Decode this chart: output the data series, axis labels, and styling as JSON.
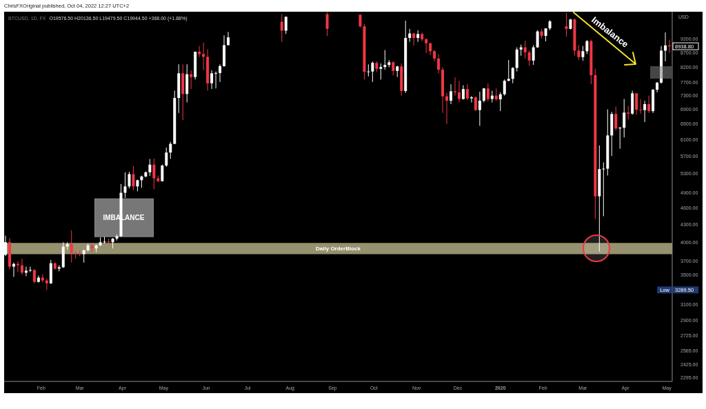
{
  "chart_data": {
    "type": "candlestick",
    "title": "BTCUSD, 1D, FX",
    "subtitle": "O19576.50 H20136.50 L19479.50 C19944.50 +368.00 (+1.88%)",
    "ylabel": "USD",
    "x": [
      "2019-01-06",
      "2019-01-09",
      "2019-01-12",
      "2019-01-15",
      "2019-01-18",
      "2019-01-21",
      "2019-01-24",
      "2019-01-27",
      "2019-01-30",
      "2019-02-02",
      "2019-02-05",
      "2019-02-08",
      "2019-02-11",
      "2019-02-14",
      "2019-02-17",
      "2019-02-20",
      "2019-02-23",
      "2019-02-26",
      "2019-03-01",
      "2019-03-04",
      "2019-03-07",
      "2019-03-10",
      "2019-03-13",
      "2019-03-16",
      "2019-03-19",
      "2019-03-22",
      "2019-03-25",
      "2019-03-28",
      "2019-03-31",
      "2019-04-03",
      "2019-04-06",
      "2019-04-09",
      "2019-04-12",
      "2019-04-15",
      "2019-04-18",
      "2019-04-21",
      "2019-04-24",
      "2019-04-27",
      "2019-04-30",
      "2019-05-03",
      "2019-05-06",
      "2019-05-09",
      "2019-05-12",
      "2019-05-15",
      "2019-05-18",
      "2019-05-21",
      "2019-05-24",
      "2019-05-27",
      "2019-05-30",
      "2019-06-02",
      "2019-06-05",
      "2019-06-08",
      "2019-06-11",
      "2019-06-14",
      "2019-06-17",
      "2019-07-26",
      "2019-07-29",
      "2019-08-28",
      "2019-09-21",
      "2019-09-24",
      "2019-09-27",
      "2019-09-30",
      "2019-10-03",
      "2019-10-06",
      "2019-10-09",
      "2019-10-12",
      "2019-10-15",
      "2019-10-18",
      "2019-10-21",
      "2019-10-24",
      "2019-10-27",
      "2019-10-30",
      "2019-11-02",
      "2019-11-05",
      "2019-11-08",
      "2019-11-11",
      "2019-11-14",
      "2019-11-17",
      "2019-11-20",
      "2019-11-23",
      "2019-11-26",
      "2019-11-29",
      "2019-12-02",
      "2019-12-05",
      "2019-12-08",
      "2019-12-11",
      "2019-12-14",
      "2019-12-17",
      "2019-12-20",
      "2019-12-23",
      "2019-12-26",
      "2019-12-29",
      "2020-01-01",
      "2020-01-04",
      "2020-01-07",
      "2020-01-10",
      "2020-01-13",
      "2020-01-16",
      "2020-01-19",
      "2020-01-22",
      "2020-01-25",
      "2020-01-28",
      "2020-01-31",
      "2020-02-03",
      "2020-02-06",
      "2020-02-18",
      "2020-02-21",
      "2020-02-24",
      "2020-02-27",
      "2020-03-01",
      "2020-03-04",
      "2020-03-07",
      "2020-03-10",
      "2020-03-13",
      "2020-03-16",
      "2020-03-19",
      "2020-03-22",
      "2020-03-25",
      "2020-03-28",
      "2020-03-31",
      "2020-04-03",
      "2020-04-06",
      "2020-04-09",
      "2020-04-12",
      "2020-04-15",
      "2020-04-18",
      "2020-04-21",
      "2020-04-24",
      "2020-04-27",
      "2020-04-30",
      "2020-05-03"
    ],
    "ohlc": [
      [
        3800,
        4110,
        3780,
        4000
      ],
      [
        4000,
        4070,
        3580,
        3620
      ],
      [
        3620,
        3680,
        3470,
        3660
      ],
      [
        3660,
        3700,
        3540,
        3640
      ],
      [
        3640,
        3740,
        3500,
        3530
      ],
      [
        3530,
        3620,
        3480,
        3560
      ],
      [
        3560,
        3620,
        3540,
        3570
      ],
      [
        3570,
        3580,
        3380,
        3400
      ],
      [
        3400,
        3490,
        3390,
        3460
      ],
      [
        3460,
        3510,
        3390,
        3420
      ],
      [
        3420,
        3450,
        3289.5,
        3380
      ],
      [
        3380,
        3720,
        3370,
        3670
      ],
      [
        3670,
        3680,
        3570,
        3590
      ],
      [
        3590,
        3640,
        3550,
        3610
      ],
      [
        3610,
        4000,
        3600,
        3930
      ],
      [
        3930,
        4000,
        3880,
        3970
      ],
      [
        3970,
        4200,
        3680,
        3830
      ],
      [
        3830,
        3860,
        3740,
        3820
      ],
      [
        3820,
        3870,
        3780,
        3810
      ],
      [
        3810,
        3880,
        3680,
        3870
      ],
      [
        3870,
        3980,
        3850,
        3950
      ],
      [
        3950,
        3960,
        3840,
        3900
      ],
      [
        3900,
        3960,
        3840,
        3950
      ],
      [
        3950,
        4080,
        3940,
        4000
      ],
      [
        4000,
        4090,
        3980,
        4010
      ],
      [
        4010,
        4060,
        3980,
        4000
      ],
      [
        4000,
        4070,
        3900,
        4060
      ],
      [
        4060,
        4130,
        4030,
        4100
      ],
      [
        4100,
        5080,
        4090,
        4900
      ],
      [
        4900,
        5330,
        4800,
        5030
      ],
      [
        5030,
        5340,
        4990,
        5290
      ],
      [
        5290,
        5470,
        4950,
        5030
      ],
      [
        5030,
        5170,
        4930,
        5160
      ],
      [
        5160,
        5260,
        5000,
        5240
      ],
      [
        5240,
        5350,
        5220,
        5330
      ],
      [
        5330,
        5630,
        5250,
        5500
      ],
      [
        5500,
        5640,
        4970,
        5200
      ],
      [
        5200,
        5260,
        5120,
        5140
      ],
      [
        5140,
        5500,
        5130,
        5480
      ],
      [
        5480,
        5900,
        5450,
        5780
      ],
      [
        5780,
        6040,
        5630,
        5990
      ],
      [
        5990,
        7450,
        5980,
        7230
      ],
      [
        7230,
        8300,
        6800,
        8000
      ],
      [
        8000,
        8300,
        6600,
        7350
      ],
      [
        7350,
        8300,
        7100,
        7970
      ],
      [
        7970,
        8100,
        7500,
        7880
      ],
      [
        7880,
        8750,
        7800,
        8740
      ],
      [
        8740,
        8950,
        8550,
        8660
      ],
      [
        8660,
        9080,
        8100,
        8560
      ],
      [
        8560,
        8830,
        7450,
        7680
      ],
      [
        7680,
        8100,
        7500,
        8000
      ],
      [
        8000,
        8060,
        7520,
        8010
      ],
      [
        8010,
        8300,
        7720,
        8240
      ],
      [
        8240,
        9350,
        8220,
        8980
      ],
      [
        8980,
        9480,
        8970,
        9270
      ],
      [
        9880,
        10200,
        9100,
        9530
      ],
      [
        9530,
        10100,
        9400,
        10090
      ],
      [
        10190,
        10280,
        9330,
        9600
      ],
      [
        10170,
        10200,
        9650,
        9700
      ],
      [
        9700,
        9800,
        7800,
        8050
      ],
      [
        8050,
        8300,
        7900,
        8060
      ],
      [
        8060,
        8400,
        7720,
        8350
      ],
      [
        8350,
        8400,
        8050,
        8150
      ],
      [
        8150,
        8330,
        7800,
        8210
      ],
      [
        8210,
        8800,
        8120,
        8280
      ],
      [
        8280,
        8450,
        8200,
        8370
      ],
      [
        8370,
        8400,
        7930,
        8080
      ],
      [
        8080,
        8250,
        7880,
        8230
      ],
      [
        8230,
        8330,
        7300,
        7440
      ],
      [
        7440,
        9930,
        7380,
        9250
      ],
      [
        9250,
        9600,
        9100,
        9420
      ],
      [
        9420,
        9450,
        8970,
        9250
      ],
      [
        9250,
        9550,
        9100,
        9400
      ],
      [
        9400,
        9450,
        9130,
        9200
      ],
      [
        9200,
        9240,
        8700,
        9050
      ],
      [
        9050,
        9080,
        8620,
        8760
      ],
      [
        8760,
        8800,
        8400,
        8500
      ],
      [
        8500,
        8650,
        8000,
        8120
      ],
      [
        8120,
        8200,
        6800,
        7280
      ],
      [
        7280,
        7380,
        6500,
        7150
      ],
      [
        7150,
        7650,
        7050,
        7430
      ],
      [
        7430,
        7870,
        7300,
        7400
      ],
      [
        7400,
        7750,
        7100,
        7200
      ],
      [
        7200,
        7620,
        7180,
        7500
      ],
      [
        7500,
        7650,
        7170,
        7220
      ],
      [
        7220,
        7290,
        7100,
        7250
      ],
      [
        7250,
        7280,
        6850,
        6880
      ],
      [
        6880,
        7420,
        6450,
        7150
      ],
      [
        7150,
        7530,
        7100,
        7520
      ],
      [
        7520,
        7680,
        7130,
        7200
      ],
      [
        7200,
        7450,
        7100,
        7300
      ],
      [
        7300,
        7520,
        7150,
        7190
      ],
      [
        7190,
        7400,
        6850,
        7340
      ],
      [
        7340,
        7800,
        7300,
        7760
      ],
      [
        7760,
        8450,
        7740,
        7820
      ],
      [
        7820,
        8200,
        7680,
        8180
      ],
      [
        8180,
        8900,
        8060,
        8820
      ],
      [
        8820,
        9000,
        8600,
        8900
      ],
      [
        8900,
        9150,
        8500,
        8720
      ],
      [
        8720,
        8790,
        8250,
        8430
      ],
      [
        8430,
        8980,
        8280,
        8900
      ],
      [
        8900,
        9550,
        8880,
        9500
      ],
      [
        9500,
        9600,
        9230,
        9330
      ],
      [
        9330,
        9620,
        9120,
        9620
      ],
      [
        9620,
        9950,
        9550,
        9900
      ],
      [
        9700,
        10250,
        9300,
        9600
      ],
      [
        9600,
        10000,
        9580,
        9980
      ],
      [
        9980,
        10020,
        8600,
        8780
      ],
      [
        8780,
        8980,
        8450,
        8550
      ],
      [
        8550,
        8950,
        8420,
        8760
      ],
      [
        8760,
        9170,
        8660,
        9130
      ],
      [
        9130,
        9180,
        7650,
        7940
      ],
      [
        7940,
        8150,
        4400,
        4830
      ],
      [
        4830,
        5950,
        3850,
        5400
      ],
      [
        5400,
        5550,
        4450,
        5410
      ],
      [
        5410,
        6900,
        5260,
        6200
      ],
      [
        6200,
        6830,
        5700,
        6770
      ],
      [
        6770,
        6980,
        6330,
        6380
      ],
      [
        6380,
        6420,
        5870,
        6400
      ],
      [
        6400,
        7200,
        6150,
        6810
      ],
      [
        6810,
        7000,
        6620,
        6780
      ],
      [
        6780,
        7450,
        6750,
        7370
      ],
      [
        7370,
        7380,
        6750,
        6890
      ],
      [
        6890,
        7200,
        6780,
        6880
      ],
      [
        6880,
        7150,
        6550,
        7050
      ],
      [
        7050,
        7300,
        6800,
        6850
      ],
      [
        6850,
        7500,
        6800,
        7480
      ],
      [
        7480,
        7720,
        7400,
        7700
      ],
      [
        7700,
        8950,
        7670,
        8780
      ],
      [
        8780,
        9460,
        8400,
        8970
      ],
      [
        8970,
        9180,
        8700,
        8938.8
      ]
    ],
    "colors": [
      "#ffffff",
      "#f23645",
      "#ffffff",
      "#f23645",
      "#f23645",
      "#ffffff",
      "#ffffff",
      "#f23645",
      "#ffffff",
      "#f23645",
      "#f23645",
      "#ffffff",
      "#f23645",
      "#ffffff",
      "#ffffff",
      "#ffffff",
      "#f23645",
      "#f23645",
      "#f23645",
      "#ffffff",
      "#ffffff",
      "#f23645",
      "#ffffff",
      "#ffffff",
      "#ffffff",
      "#f23645",
      "#ffffff",
      "#ffffff",
      "#ffffff",
      "#ffffff",
      "#ffffff",
      "#f23645",
      "#ffffff",
      "#ffffff",
      "#ffffff",
      "#ffffff",
      "#f23645",
      "#f23645",
      "#ffffff",
      "#ffffff",
      "#ffffff",
      "#ffffff",
      "#ffffff",
      "#f23645",
      "#ffffff",
      "#f23645",
      "#ffffff",
      "#f23645",
      "#f23645",
      "#f23645",
      "#ffffff",
      "#ffffff",
      "#ffffff",
      "#ffffff",
      "#ffffff",
      "#f23645",
      "#ffffff",
      "#f23645",
      "#f23645",
      "#f23645",
      "#ffffff",
      "#ffffff",
      "#f23645",
      "#ffffff",
      "#ffffff",
      "#ffffff",
      "#f23645",
      "#ffffff",
      "#f23645",
      "#ffffff",
      "#ffffff",
      "#f23645",
      "#ffffff",
      "#f23645",
      "#f23645",
      "#f23645",
      "#f23645",
      "#f23645",
      "#f23645",
      "#f23645",
      "#ffffff",
      "#f23645",
      "#f23645",
      "#ffffff",
      "#f23645",
      "#ffffff",
      "#f23645",
      "#ffffff",
      "#ffffff",
      "#f23645",
      "#ffffff",
      "#f23645",
      "#ffffff",
      "#ffffff",
      "#ffffff",
      "#ffffff",
      "#ffffff",
      "#ffffff",
      "#f23645",
      "#f23645",
      "#ffffff",
      "#ffffff",
      "#f23645",
      "#ffffff",
      "#ffffff",
      "#f23645",
      "#ffffff",
      "#f23645",
      "#f23645",
      "#ffffff",
      "#ffffff",
      "#f23645",
      "#f23645",
      "#ffffff",
      "#ffffff",
      "#ffffff",
      "#ffffff",
      "#f23645",
      "#ffffff",
      "#ffffff",
      "#f23645",
      "#ffffff",
      "#f23645",
      "#f23645",
      "#ffffff",
      "#f23645",
      "#ffffff",
      "#ffffff",
      "#ffffff",
      "#ffffff",
      "#f23645"
    ],
    "log": true,
    "xlim": [
      "2019-01-05",
      "2020-05-05"
    ],
    "xticks": [
      {
        "value": "2019-02-01",
        "label": "Feb"
      },
      {
        "value": "2019-03-01",
        "label": "Mar"
      },
      {
        "value": "2019-04-01",
        "label": "Apr"
      },
      {
        "value": "2019-05-01",
        "label": "May"
      },
      {
        "value": "2019-06-01",
        "label": "Jun"
      },
      {
        "value": "2019-07-01",
        "label": "Jul"
      },
      {
        "value": "2019-08-01",
        "label": "Aug"
      },
      {
        "value": "2019-09-01",
        "label": "Sep"
      },
      {
        "value": "2019-10-01",
        "label": "Oct"
      },
      {
        "value": "2019-11-01",
        "label": "Nov"
      },
      {
        "value": "2019-12-01",
        "label": "Dec"
      },
      {
        "value": "2020-01-01",
        "label": "2020"
      },
      {
        "value": "2020-02-01",
        "label": "Feb"
      },
      {
        "value": "2020-03-01",
        "label": "Mar"
      },
      {
        "value": "2020-04-01",
        "label": "Apr"
      },
      {
        "value": "2020-05-01",
        "label": "May"
      }
    ],
    "ylim": [
      2260,
      10300
    ],
    "yticks": [
      {
        "value": 2295,
        "label": "2295.00"
      },
      {
        "value": 2425,
        "label": "2425.00"
      },
      {
        "value": 2565,
        "label": "2565.00"
      },
      {
        "value": 2725,
        "label": "2725.00"
      },
      {
        "value": 2900,
        "label": "2900.00"
      },
      {
        "value": 3100,
        "label": "3100.00"
      },
      {
        "value": 3500,
        "label": "3500.00"
      },
      {
        "value": 3700,
        "label": "3700.00"
      },
      {
        "value": 4000,
        "label": "4000.00"
      },
      {
        "value": 4300,
        "label": "4300.00"
      },
      {
        "value": 4600,
        "label": "4600.00"
      },
      {
        "value": 4900,
        "label": "4900.00"
      },
      {
        "value": 5300,
        "label": "5300.00"
      },
      {
        "value": 5700,
        "label": "5700.00"
      },
      {
        "value": 6100,
        "label": "6100.00"
      },
      {
        "value": 6500,
        "label": "6500.00"
      },
      {
        "value": 6900,
        "label": "6900.00"
      },
      {
        "value": 7300,
        "label": "7300.00"
      },
      {
        "value": 7700,
        "label": "7700.00"
      },
      {
        "value": 8200,
        "label": "8200.00"
      },
      {
        "value": 8700,
        "label": "8700.00"
      },
      {
        "value": 9200,
        "label": "9200.00"
      }
    ],
    "bands": [
      {
        "axis": "y",
        "from": 3810,
        "to": 3990,
        "label": "Daily OrderBlock",
        "color": "#96916e"
      }
    ],
    "annotations": [
      "ChrisFXOriginal published, Oct 04, 2022 12:27 UTC+2",
      {
        "text": "IMBALANCE",
        "x": "2019-04-02",
        "y": 4430
      },
      "Imbalance",
      "8938.80",
      "Low 3289.50"
    ]
  }
}
